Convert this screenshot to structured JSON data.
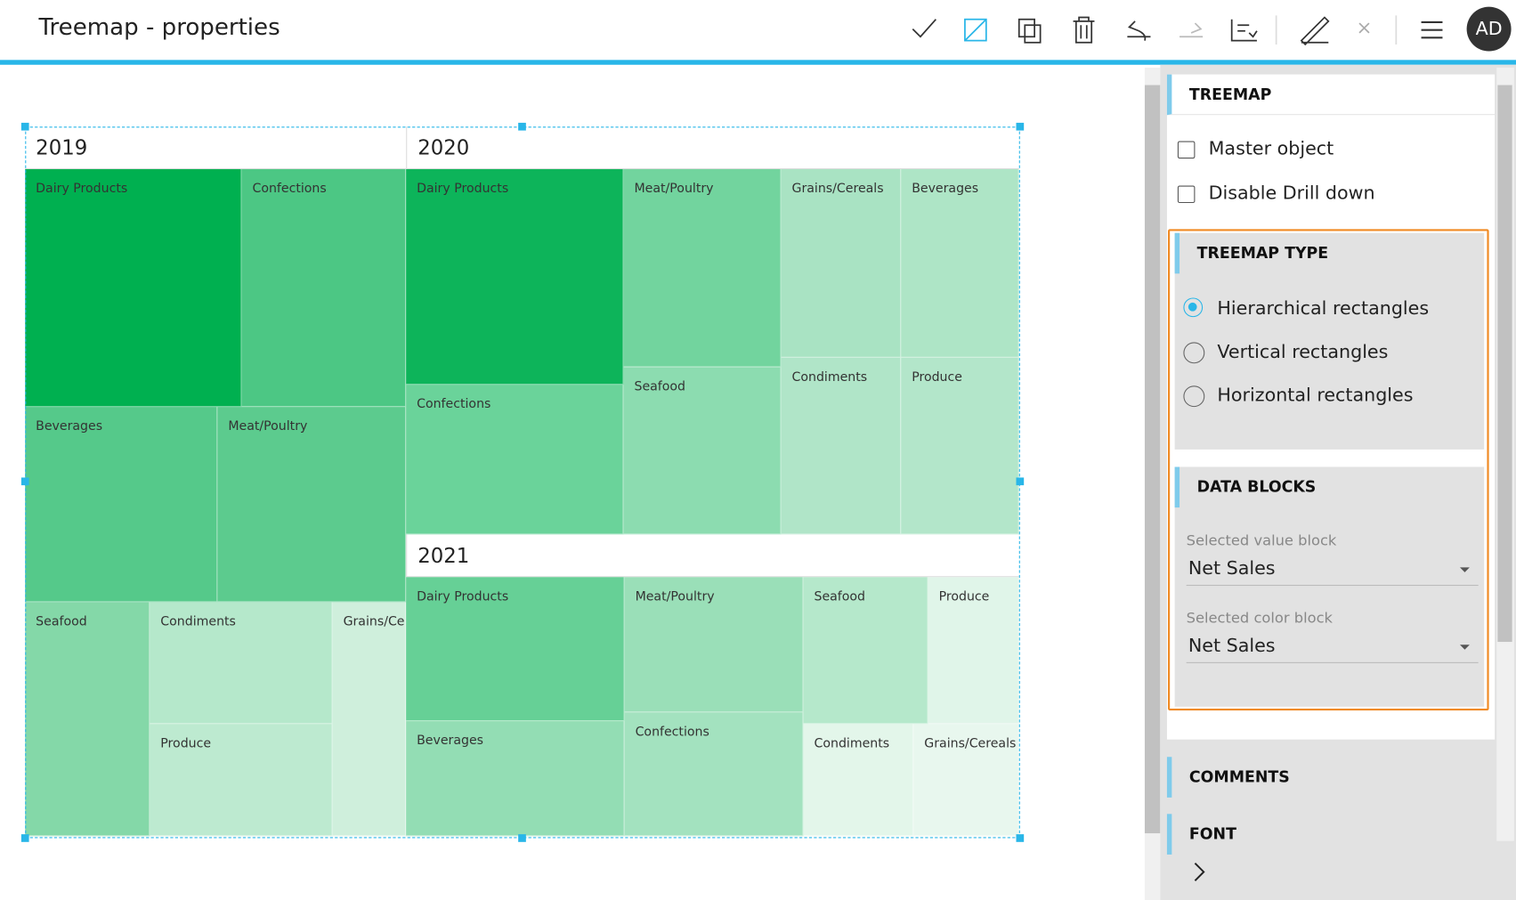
{
  "header": {
    "title": "Treemap - properties",
    "avatar": "AD"
  },
  "treemap": {
    "groups": [
      {
        "label": "2019",
        "cells": [
          "Dairy Products",
          "Confections",
          "Beverages",
          "Meat/Poultry",
          "Seafood",
          "Condiments",
          "Produce",
          "Grains/Cereals"
        ]
      },
      {
        "label": "2020",
        "cells": [
          "Dairy Products",
          "Confections",
          "Meat/Poultry",
          "Seafood",
          "Grains/Cereals",
          "Beverages",
          "Condiments",
          "Produce"
        ]
      },
      {
        "label": "2021",
        "cells": [
          "Dairy Products",
          "Beverages",
          "Meat/Poultry",
          "Confections",
          "Seafood",
          "Produce",
          "Condiments",
          "Grains/Cereals"
        ]
      }
    ]
  },
  "panel": {
    "section": "TREEMAP",
    "checkboxes": [
      "Master object",
      "Disable Drill down"
    ],
    "treemap_type": {
      "title": "TREEMAP TYPE",
      "options": [
        "Hierarchical rectangles",
        "Vertical rectangles",
        "Horizontal rectangles"
      ]
    },
    "data_blocks": {
      "title": "DATA BLOCKS",
      "fields": [
        {
          "label": "Selected value block",
          "value": "Net Sales"
        },
        {
          "label": "Selected color block",
          "value": "Net Sales"
        }
      ]
    },
    "sections": [
      "COMMENTS",
      "FONT"
    ]
  }
}
